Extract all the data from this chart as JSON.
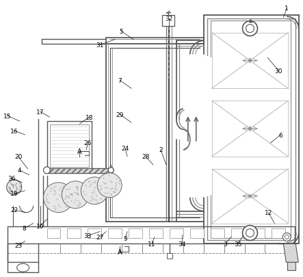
{
  "bg_color": "#ffffff",
  "lc": "#555555",
  "lc2": "#888888",
  "figsize": [
    4.43,
    4.06
  ],
  "dpi": 100
}
